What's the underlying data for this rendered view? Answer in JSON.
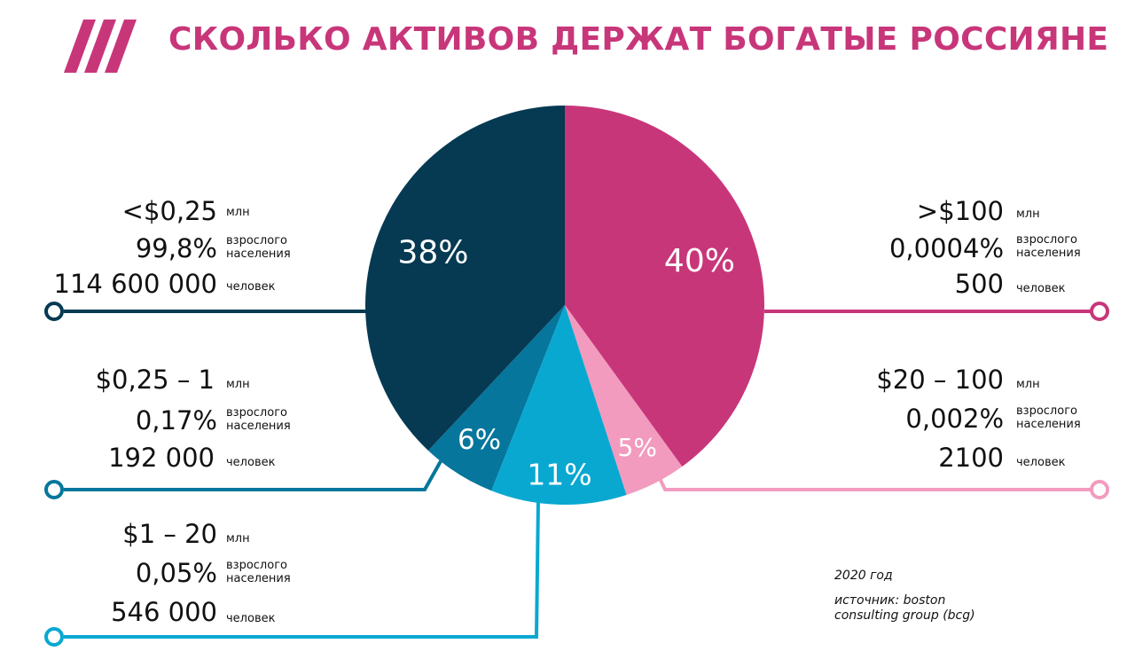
{
  "title": "СКОЛЬКО АКТИВОВ ДЕРЖАТ БОГАТЫЕ РОССИЯНЕ",
  "colors": {
    "title": "#c8367a",
    "logo": "#c8367a",
    "navy": "#063a52",
    "teal": "#06769c",
    "cyan": "#09a8d1",
    "lightpink": "#f29bbf",
    "magenta": "#c8367a"
  },
  "chart_data": {
    "type": "pie",
    "title": "СКОЛЬКО АКТИВОВ ДЕРЖАТ БОГАТЫЕ РОССИЯНЕ",
    "unit": "%",
    "slices": [
      {
        "label": ">$100",
        "value": 40,
        "value_label": "40%",
        "color": "#c8367a",
        "share": "0,0004%",
        "people": "500"
      },
      {
        "label": "$20 – 100",
        "value": 5,
        "value_label": "5%",
        "color": "#f29bbf",
        "share": "0,002%",
        "people": "2100"
      },
      {
        "label": "$1 – 20",
        "value": 11,
        "value_label": "11%",
        "color": "#09a8d1",
        "share": "0,05%",
        "people": "546 000"
      },
      {
        "label": "$0,25 – 1",
        "value": 6,
        "value_label": "6%",
        "color": "#06769c",
        "share": "0,17%",
        "people": "192 000"
      },
      {
        "label": "<$0,25",
        "value": 38,
        "value_label": "38%",
        "color": "#063a52",
        "share": "99,8%",
        "people": "114 600 000"
      }
    ]
  },
  "units": {
    "mln": "млн",
    "adult_line1": "взрослого",
    "adult_line2": "населения",
    "people": "человек"
  },
  "notes": {
    "year": "2020 год",
    "source_line1": "источник: boston",
    "source_line2": "consulting group (bcg)"
  }
}
